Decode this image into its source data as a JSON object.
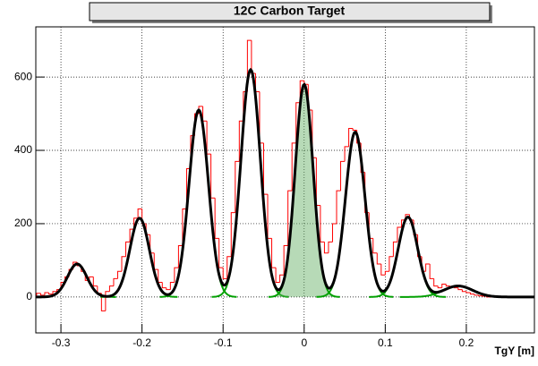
{
  "chart_data": {
    "type": "histogram",
    "title": "12C Carbon Target",
    "x_label": "TgY [m]",
    "bins": [
      -0.33,
      -0.325,
      -0.32,
      -0.315,
      -0.31,
      -0.305,
      -0.3,
      -0.295,
      -0.29,
      -0.285,
      -0.28,
      -0.275,
      -0.27,
      -0.265,
      -0.26,
      -0.255,
      -0.25,
      -0.245,
      -0.24,
      -0.235,
      -0.23,
      -0.225,
      -0.22,
      -0.215,
      -0.21,
      -0.205,
      -0.2,
      -0.195,
      -0.19,
      -0.185,
      -0.18,
      -0.175,
      -0.17,
      -0.165,
      -0.16,
      -0.155,
      -0.15,
      -0.145,
      -0.14,
      -0.135,
      -0.13,
      -0.125,
      -0.12,
      -0.115,
      -0.11,
      -0.105,
      -0.1,
      -0.095,
      -0.09,
      -0.085,
      -0.08,
      -0.075,
      -0.07,
      -0.065,
      -0.06,
      -0.055,
      -0.05,
      -0.045,
      -0.04,
      -0.035,
      -0.03,
      -0.025,
      -0.02,
      -0.015,
      -0.01,
      -0.005,
      0,
      0.005,
      0.01,
      0.015,
      0.02,
      0.025,
      0.03,
      0.035,
      0.04,
      0.045,
      0.05,
      0.055,
      0.06,
      0.065,
      0.07,
      0.075,
      0.08,
      0.085,
      0.09,
      0.095,
      0.1,
      0.105,
      0.11,
      0.115,
      0.12,
      0.125,
      0.13,
      0.135,
      0.14,
      0.145,
      0.15,
      0.155,
      0.16,
      0.165,
      0.17,
      0.175,
      0.18,
      0.185,
      0.19,
      0.195,
      0.2,
      0.205,
      0.21,
      0.215,
      0.22,
      0.225,
      0.23,
      0.235,
      0.24,
      0.245,
      0.25,
      0.255,
      0.26,
      0.265,
      0.27,
      0.275,
      0.28
    ],
    "counts": [
      10,
      5,
      12,
      8,
      15,
      20,
      40,
      55,
      75,
      95,
      85,
      70,
      45,
      55,
      30,
      10,
      -38,
      15,
      30,
      50,
      70,
      110,
      150,
      185,
      215,
      240,
      200,
      170,
      120,
      75,
      40,
      25,
      20,
      40,
      80,
      140,
      240,
      350,
      440,
      500,
      520,
      480,
      390,
      270,
      160,
      80,
      50,
      110,
      230,
      370,
      480,
      560,
      700,
      610,
      560,
      420,
      280,
      160,
      80,
      40,
      60,
      140,
      290,
      420,
      530,
      590,
      580,
      510,
      380,
      250,
      150,
      120,
      150,
      200,
      290,
      370,
      410,
      460,
      455,
      420,
      340,
      230,
      160,
      120,
      90,
      60,
      70,
      110,
      150,
      190,
      210,
      225,
      210,
      170,
      110,
      70,
      90,
      50,
      30,
      25,
      35,
      30,
      28,
      25,
      20,
      15,
      12,
      8,
      5,
      3,
      2,
      0,
      0,
      0,
      0,
      0,
      0,
      0,
      0,
      0,
      0,
      0
    ],
    "color": "#ff0000",
    "components": [
      {
        "mean": -0.28,
        "amplitude": 90,
        "sigma": 0.012
      },
      {
        "mean": -0.203,
        "amplitude": 215,
        "sigma": 0.012
      },
      {
        "mean": -0.13,
        "amplitude": 510,
        "sigma": 0.012
      },
      {
        "mean": -0.066,
        "amplitude": 620,
        "sigma": 0.012
      },
      {
        "mean": 0.0,
        "amplitude": 580,
        "sigma": 0.011,
        "fill": "#5fae5f"
      },
      {
        "mean": 0.063,
        "amplitude": 450,
        "sigma": 0.012
      },
      {
        "mean": 0.128,
        "amplitude": 218,
        "sigma": 0.012
      },
      {
        "mean": 0.19,
        "amplitude": 30,
        "sigma": 0.018
      }
    ],
    "component_color": "#00a000",
    "fit_color": "#000000",
    "xlim": [
      -0.331,
      0.284
    ],
    "ylim": [
      -98,
      737
    ],
    "xticks": [
      -0.3,
      -0.2,
      -0.1,
      0.0,
      0.1,
      0.2
    ],
    "yticks": [
      0,
      200,
      400,
      600
    ],
    "grid": true
  }
}
